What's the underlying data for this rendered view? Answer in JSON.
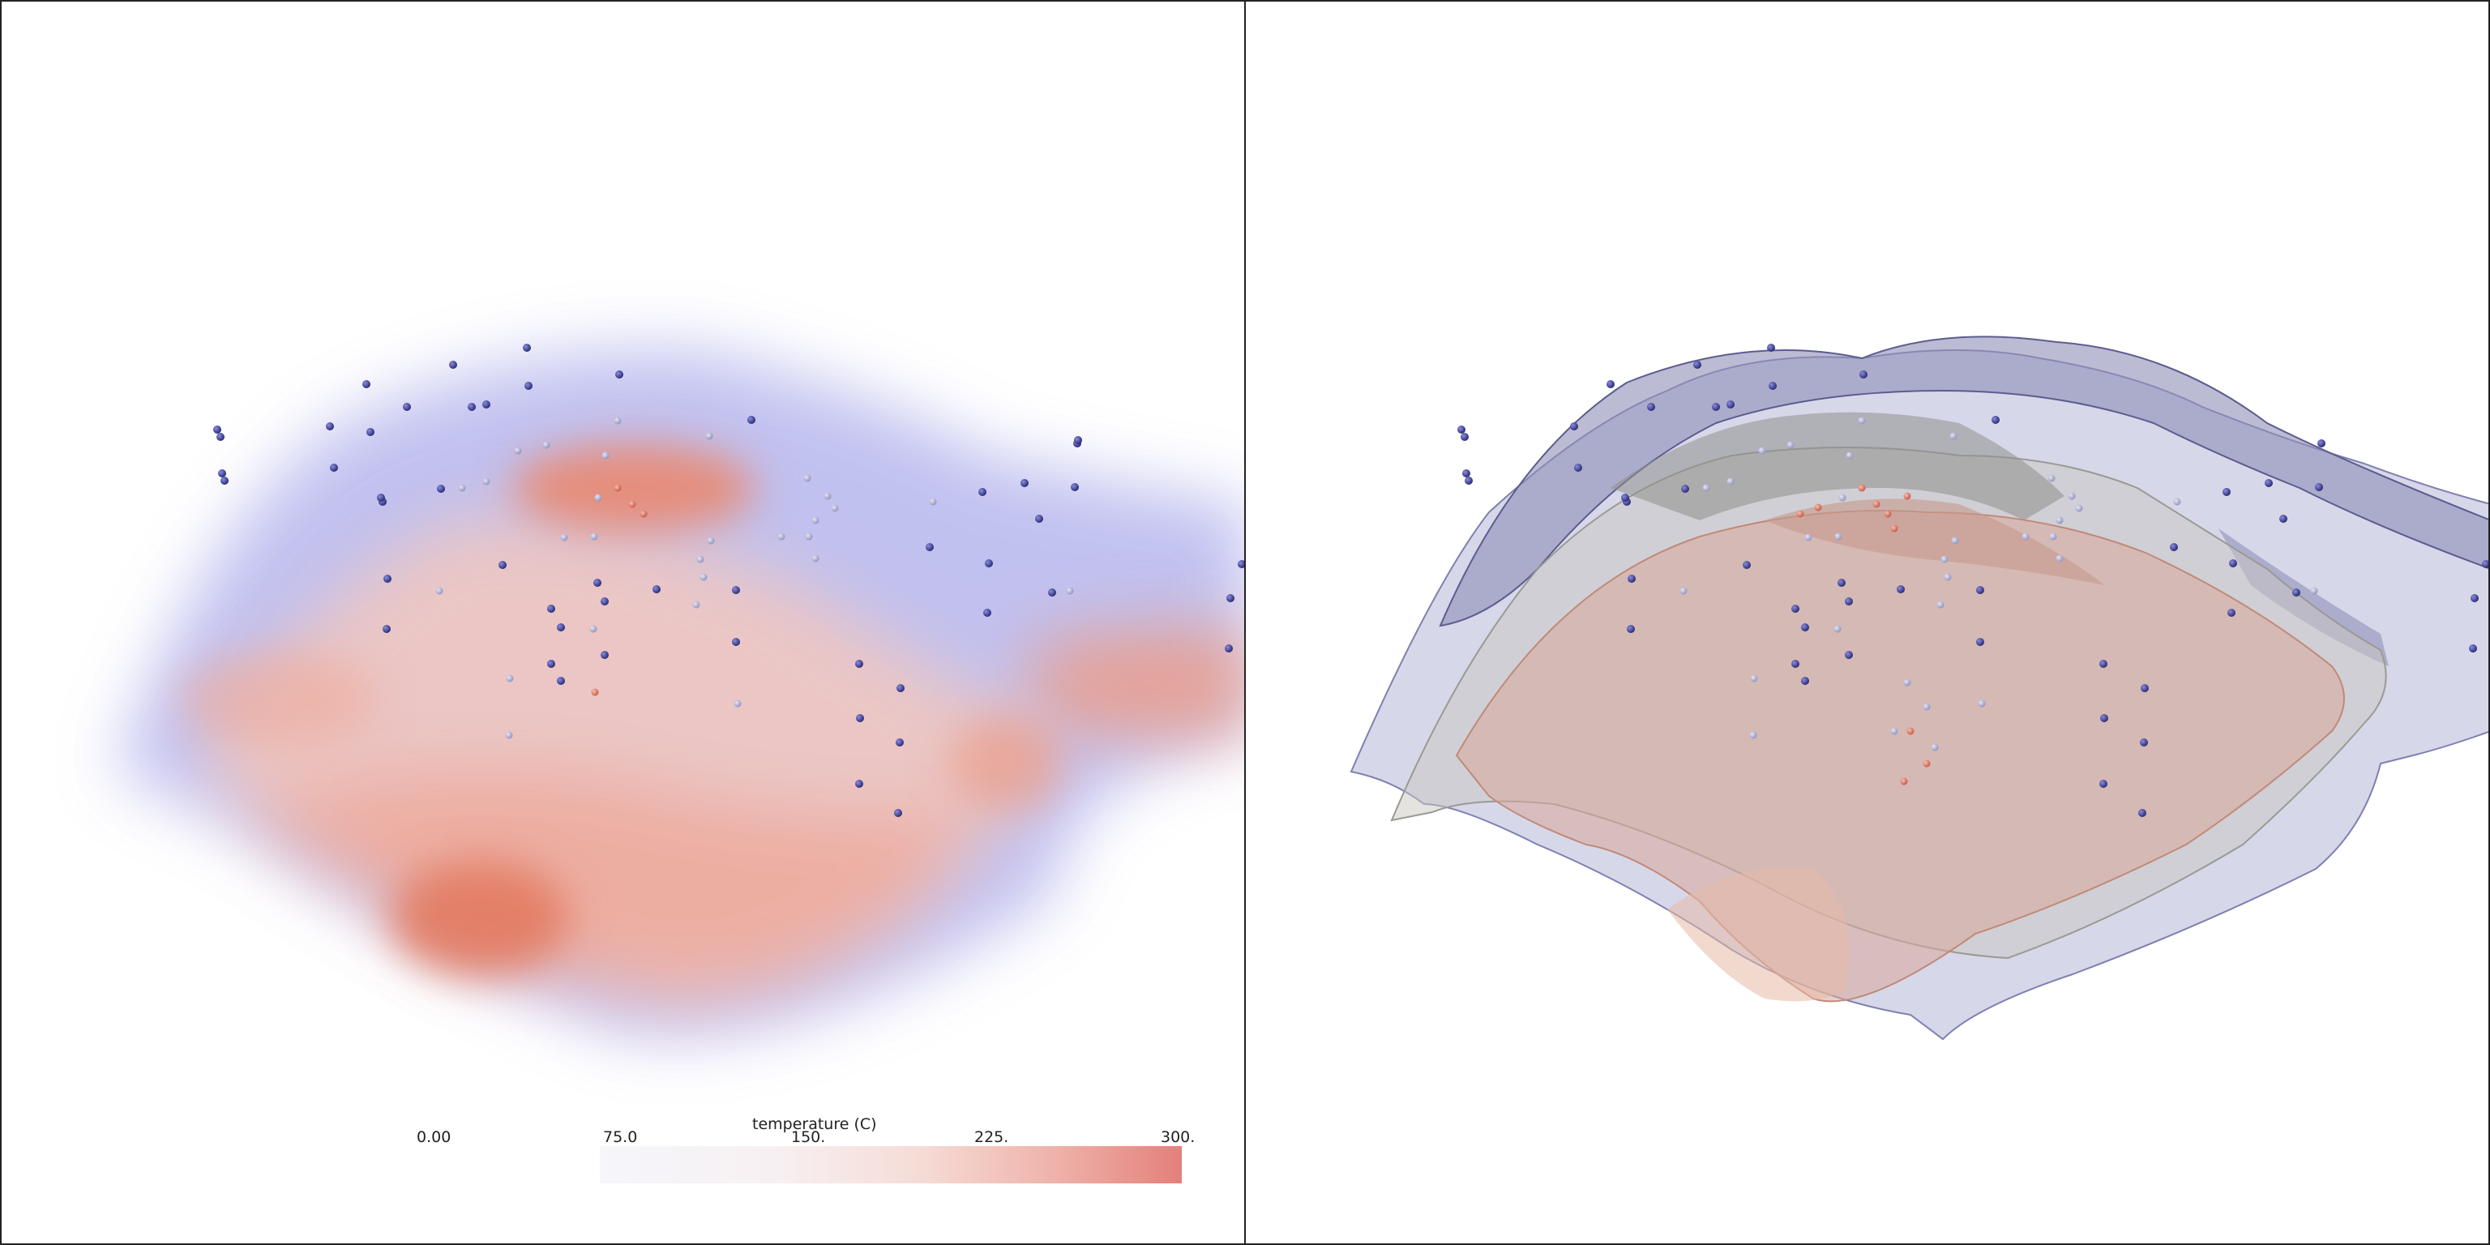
{
  "viewports": {
    "left": {
      "render": "volume rendering of temperature field with well points"
    },
    "right": {
      "render": "transparent temperature isosurfaces with well points"
    }
  },
  "scalar_bar": {
    "title": "temperature (C)",
    "ticks": [
      "0.00",
      "75.0",
      "150.",
      "225.",
      "300."
    ],
    "range": [
      0,
      300
    ],
    "colors": {
      "low": "#f6f6fb",
      "mid": "#f6dcd6",
      "high": "#e57f7b"
    }
  },
  "colors": {
    "cold_points": "#2e2f85",
    "mid_points": "#9a9cc8",
    "hot_points": "#d9624f",
    "cold_volume": "#a9a9ea",
    "hot_volume": "#e98d77",
    "cold_surface": "#7a7bae",
    "mid_surface": "#a5a59c",
    "hot_surface": "#d29884"
  }
}
